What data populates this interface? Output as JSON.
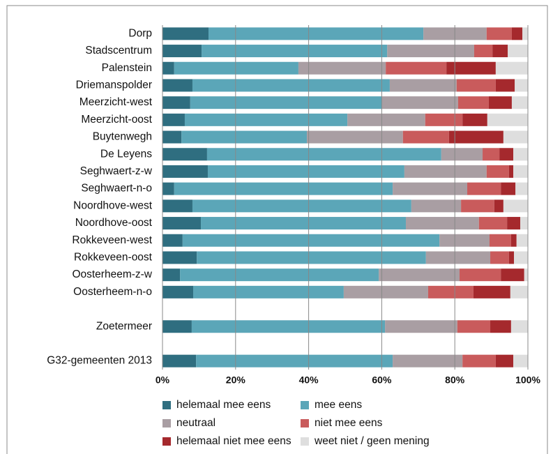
{
  "chart_data": {
    "type": "stacked_bar_horizontal",
    "categories": [
      "Dorp",
      "Stadscentrum",
      "Palenstein",
      "Driemanspolder",
      "Meerzicht-west",
      "Meerzicht-oost",
      "Buytenwegh",
      "De Leyens",
      "Seghwaert-z-w",
      "Seghwaert-n-o",
      "Noordhove-west",
      "Noordhove-oost",
      "Rokkeveen-west",
      "Rokkeveen-oost",
      "Oosterheem-z-w",
      "Oosterheem-n-o",
      null,
      "Zoetermeer",
      null,
      "G32-gemeenten 2013"
    ],
    "series": [
      {
        "name": "helemaal mee eens",
        "color": "#2f6e80",
        "values": [
          12.6,
          10.7,
          3.2,
          8.2,
          7.6,
          6.1,
          5.2,
          12.2,
          12.4,
          3.2,
          8.2,
          10.5,
          5.5,
          9.4,
          4.8,
          8.4,
          null,
          8.0,
          null,
          9.2
        ]
      },
      {
        "name": "mee eens",
        "color": "#5ba6b8",
        "values": [
          58.8,
          50.8,
          34.0,
          54.0,
          52.5,
          44.5,
          34.3,
          64.1,
          53.8,
          59.8,
          59.9,
          56.1,
          70.3,
          62.7,
          54.4,
          41.2,
          null,
          52.9,
          null,
          53.8
        ]
      },
      {
        "name": "neutraal",
        "color": "#a99ea3",
        "values": [
          17.3,
          23.8,
          23.9,
          18.3,
          20.8,
          21.3,
          26.3,
          11.3,
          22.5,
          20.4,
          13.6,
          20.0,
          13.7,
          17.6,
          22.1,
          23.1,
          null,
          19.8,
          null,
          19.1
        ]
      },
      {
        "name": "niet mee eens",
        "color": "#c95b5c",
        "values": [
          6.9,
          5.0,
          16.6,
          10.7,
          8.4,
          10.2,
          12.6,
          4.6,
          6.1,
          9.2,
          9.1,
          7.7,
          5.9,
          5.1,
          11.3,
          12.4,
          null,
          9.0,
          null,
          9.1
        ]
      },
      {
        "name": "helemaal niet mee eens",
        "color": "#a5292d",
        "values": [
          2.9,
          4.2,
          13.5,
          5.2,
          6.3,
          6.8,
          14.9,
          3.8,
          1.2,
          4.0,
          2.5,
          3.6,
          1.5,
          1.4,
          6.4,
          10.1,
          null,
          5.7,
          null,
          4.8
        ]
      },
      {
        "name": "weet niet / geen mening",
        "color": "#dedede",
        "values": [
          1.5,
          5.5,
          8.8,
          3.6,
          4.4,
          11.1,
          6.7,
          4.0,
          4.0,
          3.4,
          6.7,
          2.1,
          3.1,
          3.8,
          1.0,
          4.8,
          null,
          4.6,
          null,
          4.0
        ]
      }
    ],
    "xlim": [
      0,
      100
    ],
    "xticks": [
      {
        "value": 0,
        "label": "0%"
      },
      {
        "value": 20,
        "label": "20%"
      },
      {
        "value": 40,
        "label": "40%"
      },
      {
        "value": 60,
        "label": "60%"
      },
      {
        "value": 80,
        "label": "80%"
      },
      {
        "value": 100,
        "label": "100%"
      }
    ],
    "grid": true
  }
}
